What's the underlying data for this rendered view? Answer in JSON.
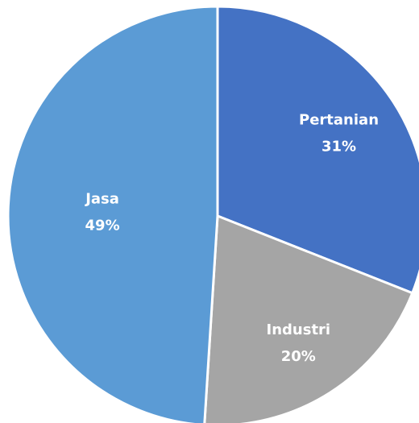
{
  "chart_data": {
    "type": "pie",
    "categories": [
      "Pertanian",
      "Industri",
      "Jasa"
    ],
    "values": [
      31,
      20,
      49
    ],
    "value_labels": [
      "31%",
      "20%",
      "49%"
    ],
    "colors": [
      "#4472c4",
      "#a5a5a5",
      "#5b9bd5"
    ]
  }
}
